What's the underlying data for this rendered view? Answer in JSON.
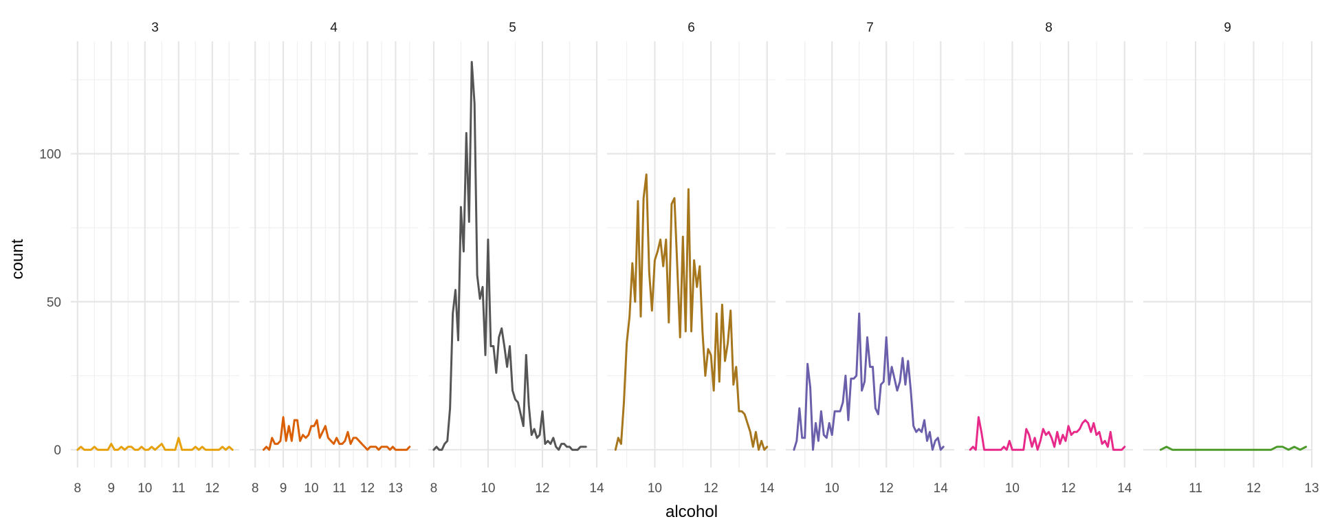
{
  "chart_data": {
    "type": "line",
    "facet_var": "quality",
    "xlabel": "alcohol",
    "ylabel": "count",
    "ylim": [
      -6,
      138
    ],
    "y_ticks": [
      0,
      50,
      100
    ],
    "y_minor": [
      25,
      75,
      125
    ],
    "grid": true,
    "facets": [
      {
        "label": "3",
        "color": "#E6A00A",
        "xlim": [
          7.8,
          12.8
        ],
        "x_ticks": [
          8,
          9,
          10,
          11,
          12
        ],
        "x_minor": [
          8.5,
          9.5,
          10.5,
          11.5,
          12.5
        ],
        "x": [
          8.0,
          8.1,
          8.2,
          8.3,
          8.4,
          8.5,
          8.6,
          8.7,
          8.8,
          8.9,
          9.0,
          9.1,
          9.2,
          9.3,
          9.4,
          9.5,
          9.6,
          9.7,
          9.8,
          9.9,
          10.0,
          10.1,
          10.2,
          10.3,
          10.4,
          10.5,
          10.6,
          10.7,
          10.8,
          10.9,
          11.0,
          11.1,
          11.2,
          11.3,
          11.4,
          11.5,
          11.6,
          11.7,
          11.8,
          11.9,
          12.0,
          12.1,
          12.2,
          12.3,
          12.4,
          12.5,
          12.6
        ],
        "y": [
          0,
          1,
          0,
          0,
          0,
          1,
          0,
          0,
          0,
          0,
          2,
          0,
          0,
          1,
          0,
          1,
          1,
          0,
          0,
          1,
          0,
          0,
          1,
          0,
          1,
          2,
          0,
          0,
          0,
          0,
          4,
          0,
          0,
          0,
          0,
          1,
          0,
          1,
          0,
          0,
          0,
          0,
          0,
          1,
          0,
          1,
          0
        ]
      },
      {
        "label": "4",
        "color": "#D95F02",
        "xlim": [
          7.8,
          13.8
        ],
        "x_ticks": [
          8,
          9,
          10,
          11,
          12,
          13
        ],
        "x_minor": [
          8.5,
          9.5,
          10.5,
          11.5,
          12.5,
          13.5
        ],
        "x": [
          8.3,
          8.4,
          8.5,
          8.6,
          8.7,
          8.8,
          8.9,
          9.0,
          9.1,
          9.2,
          9.3,
          9.4,
          9.5,
          9.6,
          9.7,
          9.8,
          9.9,
          10.0,
          10.1,
          10.2,
          10.3,
          10.4,
          10.5,
          10.6,
          10.7,
          10.8,
          10.9,
          11.0,
          11.1,
          11.2,
          11.3,
          11.4,
          11.5,
          11.6,
          11.7,
          11.8,
          11.9,
          12.0,
          12.1,
          12.2,
          12.3,
          12.4,
          12.5,
          12.6,
          12.7,
          12.8,
          12.9,
          13.0,
          13.1,
          13.2,
          13.3,
          13.4,
          13.5
        ],
        "y": [
          0,
          1,
          0,
          4,
          2,
          2,
          3,
          11,
          3,
          8,
          3,
          10,
          10,
          3,
          5,
          4,
          5,
          8,
          8,
          10,
          4,
          6,
          8,
          4,
          3,
          2,
          4,
          2,
          2,
          3,
          6,
          2,
          4,
          4,
          3,
          2,
          1,
          0,
          1,
          1,
          1,
          0,
          1,
          1,
          1,
          0,
          1,
          0,
          0,
          0,
          0,
          0,
          1
        ]
      },
      {
        "label": "5",
        "color": "#555555",
        "xlim": [
          7.8,
          14.0
        ],
        "x_ticks": [
          8,
          10,
          12,
          14
        ],
        "x_minor": [
          9,
          11,
          13
        ],
        "x": [
          8.0,
          8.1,
          8.2,
          8.3,
          8.4,
          8.5,
          8.6,
          8.7,
          8.8,
          8.9,
          9.0,
          9.1,
          9.2,
          9.3,
          9.4,
          9.5,
          9.6,
          9.7,
          9.8,
          9.9,
          10.0,
          10.1,
          10.2,
          10.3,
          10.4,
          10.5,
          10.6,
          10.7,
          10.8,
          10.9,
          11.0,
          11.1,
          11.2,
          11.3,
          11.4,
          11.5,
          11.6,
          11.7,
          11.8,
          11.9,
          12.0,
          12.1,
          12.2,
          12.3,
          12.4,
          12.5,
          12.6,
          12.7,
          12.8,
          12.9,
          13.0,
          13.1,
          13.2,
          13.3,
          13.4,
          13.5,
          13.6
        ],
        "y": [
          0,
          1,
          0,
          0,
          2,
          3,
          14,
          46,
          54,
          37,
          82,
          67,
          107,
          77,
          131,
          117,
          59,
          51,
          55,
          32,
          71,
          35,
          35,
          26,
          38,
          41,
          35,
          28,
          35,
          20,
          17,
          16,
          12,
          8,
          32,
          15,
          5,
          7,
          4,
          5,
          13,
          2,
          3,
          2,
          4,
          1,
          0,
          2,
          2,
          1,
          1,
          0,
          0,
          0,
          1,
          1,
          1
        ]
      },
      {
        "label": "6",
        "color": "#A6761D",
        "xlim": [
          8.3,
          14.3
        ],
        "x_ticks": [
          10,
          12,
          14
        ],
        "x_minor": [
          9,
          11,
          13
        ],
        "x": [
          8.6,
          8.7,
          8.8,
          8.9,
          9.0,
          9.1,
          9.2,
          9.3,
          9.4,
          9.5,
          9.6,
          9.7,
          9.8,
          9.9,
          10.0,
          10.1,
          10.2,
          10.3,
          10.4,
          10.5,
          10.6,
          10.7,
          10.8,
          10.9,
          11.0,
          11.1,
          11.2,
          11.3,
          11.4,
          11.5,
          11.6,
          11.7,
          11.8,
          11.9,
          12.0,
          12.1,
          12.2,
          12.3,
          12.4,
          12.5,
          12.6,
          12.7,
          12.8,
          12.9,
          13.0,
          13.1,
          13.2,
          13.3,
          13.4,
          13.5,
          13.6,
          13.7,
          13.8,
          13.9,
          14.0
        ],
        "y": [
          0,
          4,
          2,
          16,
          36,
          45,
          63,
          50,
          84,
          45,
          85,
          93,
          60,
          47,
          64,
          67,
          71,
          62,
          71,
          43,
          83,
          85,
          62,
          38,
          72,
          40,
          88,
          40,
          64,
          55,
          62,
          40,
          25,
          34,
          32,
          20,
          46,
          23,
          49,
          30,
          36,
          47,
          22,
          28,
          13,
          13,
          12,
          9,
          6,
          1,
          6,
          0,
          3,
          0,
          1
        ]
      },
      {
        "label": "7",
        "color": "#6A5FAA",
        "xlim": [
          8.3,
          14.5
        ],
        "x_ticks": [
          10,
          12,
          14
        ],
        "x_minor": [
          9,
          11,
          13
        ],
        "x": [
          8.6,
          8.7,
          8.8,
          8.9,
          9.0,
          9.1,
          9.2,
          9.3,
          9.4,
          9.5,
          9.6,
          9.7,
          9.8,
          9.9,
          10.0,
          10.1,
          10.2,
          10.3,
          10.4,
          10.5,
          10.6,
          10.7,
          10.8,
          10.9,
          11.0,
          11.1,
          11.2,
          11.3,
          11.4,
          11.5,
          11.6,
          11.7,
          11.8,
          11.9,
          12.0,
          12.1,
          12.2,
          12.3,
          12.4,
          12.5,
          12.6,
          12.7,
          12.8,
          12.9,
          13.0,
          13.1,
          13.2,
          13.3,
          13.4,
          13.5,
          13.6,
          13.7,
          13.8,
          13.9,
          14.0,
          14.1
        ],
        "y": [
          0,
          3,
          14,
          4,
          4,
          29,
          21,
          0,
          9,
          3,
          13,
          5,
          4,
          9,
          5,
          13,
          13,
          13,
          16,
          25,
          10,
          24,
          24,
          25,
          46,
          20,
          23,
          38,
          28,
          28,
          14,
          12,
          22,
          23,
          38,
          22,
          28,
          24,
          20,
          23,
          31,
          22,
          30,
          20,
          8,
          6,
          7,
          6,
          10,
          3,
          6,
          0,
          3,
          4,
          0,
          1
        ]
      },
      {
        "label": "8",
        "color": "#E7298A",
        "xlim": [
          8.3,
          14.3
        ],
        "x_ticks": [
          10,
          12,
          14
        ],
        "x_minor": [
          9,
          11,
          13
        ],
        "x": [
          8.5,
          8.6,
          8.7,
          8.8,
          8.9,
          9.0,
          9.1,
          9.2,
          9.3,
          9.4,
          9.5,
          9.6,
          9.7,
          9.8,
          9.9,
          10.0,
          10.1,
          10.2,
          10.3,
          10.4,
          10.5,
          10.6,
          10.7,
          10.8,
          10.9,
          11.0,
          11.1,
          11.2,
          11.3,
          11.4,
          11.5,
          11.6,
          11.7,
          11.8,
          11.9,
          12.0,
          12.1,
          12.2,
          12.3,
          12.4,
          12.5,
          12.6,
          12.7,
          12.8,
          12.9,
          13.0,
          13.1,
          13.2,
          13.3,
          13.4,
          13.5,
          13.6,
          13.7,
          13.8,
          13.9,
          14.0
        ],
        "y": [
          0,
          1,
          0,
          11,
          6,
          0,
          0,
          0,
          0,
          0,
          0,
          0,
          1,
          0,
          3,
          0,
          0,
          0,
          0,
          0,
          7,
          5,
          1,
          4,
          0,
          3,
          7,
          5,
          6,
          4,
          1,
          6,
          2,
          5,
          3,
          8,
          5,
          6,
          6,
          7,
          9,
          10,
          9,
          6,
          9,
          5,
          6,
          2,
          3,
          1,
          6,
          0,
          0,
          0,
          0,
          1
        ]
      },
      {
        "label": "9",
        "color": "#4B9A2A",
        "xlim": [
          10.1,
          13.0
        ],
        "x_ticks": [
          11,
          12,
          13
        ],
        "x_minor": [
          10.5,
          11.5,
          12.5
        ],
        "x": [
          10.4,
          10.5,
          10.6,
          10.7,
          10.8,
          10.9,
          11.0,
          11.1,
          11.2,
          11.3,
          11.4,
          11.5,
          11.6,
          11.7,
          11.8,
          11.9,
          12.0,
          12.1,
          12.2,
          12.3,
          12.4,
          12.5,
          12.6,
          12.7,
          12.8,
          12.9
        ],
        "y": [
          0,
          1,
          0,
          0,
          0,
          0,
          0,
          0,
          0,
          0,
          0,
          0,
          0,
          0,
          0,
          0,
          0,
          0,
          0,
          0,
          1,
          1,
          0,
          1,
          0,
          1
        ]
      }
    ]
  }
}
